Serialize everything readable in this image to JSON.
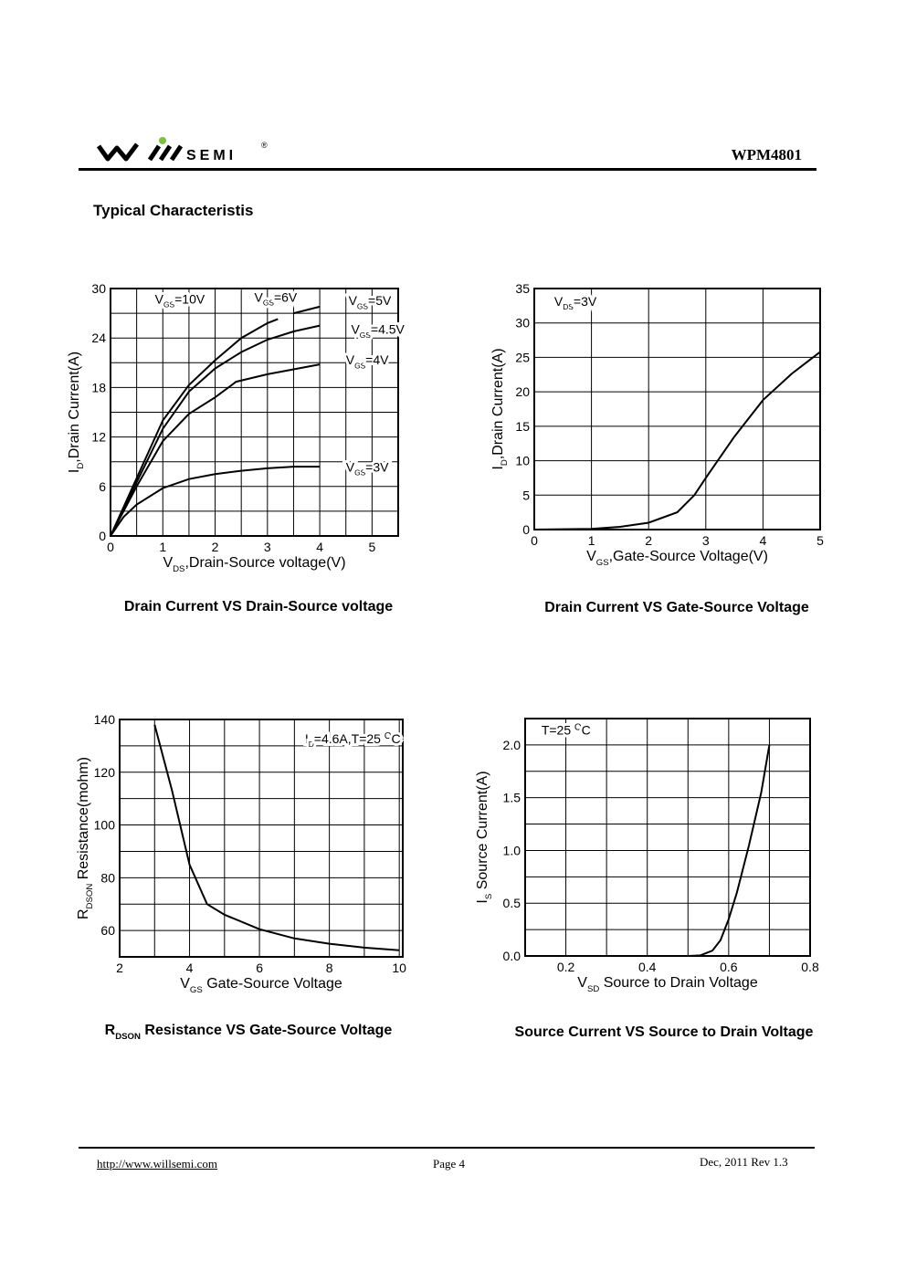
{
  "header": {
    "brand": "WILLSEMI",
    "brand_text": "SEMI",
    "registered": "®",
    "part_number": "WPM4801"
  },
  "section_title": "Typical Characteristis",
  "footer": {
    "url": "http://www.willsemi.com",
    "page": "Page 4",
    "revision": "Dec, 2011 Rev 1.3"
  },
  "chart_data": [
    {
      "type": "line",
      "title": "Drain Current VS Drain-Source voltage",
      "xlabel": {
        "main": "V",
        "sub": "DS",
        "rest": ",Drain-Source voltage(V)"
      },
      "ylabel": {
        "main": "I",
        "sub": "D",
        "rest": ",Drain Current(A)"
      },
      "xlim": [
        0,
        5.5
      ],
      "ylim": [
        0,
        30
      ],
      "xticks": [
        0,
        1,
        2,
        3,
        4,
        5
      ],
      "yticks": [
        0,
        6,
        12,
        18,
        24,
        30
      ],
      "xgrid_step": 0.5,
      "ygrid_step": 3,
      "grid": true,
      "series": [
        {
          "name": "VGS=5V",
          "x": [
            0,
            0.5,
            1,
            1.5,
            2,
            2.5,
            3,
            3.2
          ],
          "y": [
            0,
            7,
            14,
            18.3,
            21.3,
            24,
            25.8,
            26.3
          ]
        },
        {
          "name": "VGS=5V tail",
          "x": [
            3.5,
            4
          ],
          "y": [
            27,
            27.8
          ]
        },
        {
          "name": "VGS=4.5V",
          "x": [
            0,
            0.5,
            1,
            1.5,
            2,
            2.5,
            3,
            3.5,
            4
          ],
          "y": [
            0,
            6.5,
            13,
            17.5,
            20.3,
            22.3,
            23.8,
            24.8,
            25.5
          ]
        },
        {
          "name": "VGS=4V",
          "x": [
            0,
            0.5,
            1,
            1.5,
            2,
            2.4,
            3,
            3.5,
            4
          ],
          "y": [
            0,
            6,
            11.5,
            14.8,
            16.8,
            18.7,
            19.6,
            20.2,
            20.8
          ]
        },
        {
          "name": "VGS=3V",
          "x": [
            0,
            0.25,
            0.5,
            1,
            1.5,
            2,
            2.5,
            3,
            3.5,
            4
          ],
          "y": [
            0,
            2.3,
            3.8,
            5.8,
            6.9,
            7.5,
            7.9,
            8.2,
            8.4,
            8.4
          ]
        }
      ],
      "annotations": [
        {
          "main": "V",
          "sub": "GS",
          "rest": "=10V",
          "x": 0.85,
          "y": 28.2
        },
        {
          "main": "V",
          "sub": "GS",
          "rest": "=6V",
          "x": 2.75,
          "y": 28.4
        },
        {
          "main": "V",
          "sub": "GS",
          "rest": "=5V",
          "x": 4.55,
          "y": 28
        },
        {
          "main": "V",
          "sub": "GS",
          "rest": "=4.5V",
          "x": 4.6,
          "y": 24.5
        },
        {
          "main": "V",
          "sub": "GS",
          "rest": "=4V",
          "x": 4.5,
          "y": 20.8
        },
        {
          "main": "V",
          "sub": "GS",
          "rest": "=3V",
          "x": 4.5,
          "y": 7.8
        }
      ]
    },
    {
      "type": "line",
      "title": "Drain Current VS Gate-Source Voltage",
      "xlabel": {
        "main": "V",
        "sub": "GS",
        "rest": ",Gate-Source Voltage(V)"
      },
      "ylabel": {
        "main": "I",
        "sub": "D",
        "rest": ",Drain Current(A)"
      },
      "xlim": [
        0,
        5
      ],
      "ylim": [
        0,
        35
      ],
      "xticks": [
        0,
        1,
        2,
        3,
        4,
        5
      ],
      "yticks": [
        0,
        5,
        10,
        15,
        20,
        25,
        30,
        35
      ],
      "xgrid_step": 1,
      "ygrid_step": 5,
      "grid": true,
      "series": [
        {
          "name": "VDS=3V",
          "x": [
            0,
            1,
            1.5,
            2,
            2.5,
            2.8,
            3,
            3.5,
            4,
            4.5,
            5
          ],
          "y": [
            0,
            0.1,
            0.4,
            1,
            2.5,
            5,
            7.5,
            13.5,
            18.8,
            22.6,
            25.8
          ]
        }
      ],
      "annotations": [
        {
          "main": "V",
          "sub": "DS",
          "rest": "=3V",
          "x": 0.35,
          "y": 32.5
        }
      ]
    },
    {
      "type": "line",
      "title": {
        "main": "R",
        "sub": "DSON",
        "rest": " Resistance VS Gate-Source Voltage"
      },
      "xlabel": {
        "main": "V",
        "sub": "GS",
        "rest": " Gate-Source Voltage"
      },
      "ylabel": {
        "main": "R",
        "sub": "DSON",
        "rest": " Resistance(mohm)"
      },
      "xlim": [
        2,
        10.1
      ],
      "ylim": [
        50,
        140
      ],
      "xticks": [
        2,
        4,
        6,
        8,
        10
      ],
      "yticks": [
        60,
        80,
        100,
        120,
        140
      ],
      "xgrid_step": 1,
      "ygrid_step": 10,
      "grid": true,
      "series": [
        {
          "name": "ID=4.6A,T=25C",
          "x": [
            3,
            3.5,
            4,
            4.5,
            5,
            6,
            7,
            8,
            9,
            10
          ],
          "y": [
            138,
            113,
            85,
            70,
            66,
            60.5,
            57,
            55,
            53.5,
            52.5
          ]
        }
      ],
      "annotations": [
        {
          "main": "I",
          "sub": "D",
          "rest": "=4.6A,T=25 ",
          "sup": "O",
          "tail": "C",
          "x": 7.3,
          "y": 131
        }
      ]
    },
    {
      "type": "line",
      "title": "Source Current VS Source to Drain Voltage",
      "xlabel": {
        "main": "V",
        "sub": "SD",
        "rest": " Source to Drain Voltage"
      },
      "ylabel": {
        "main": "I",
        "sub": "S",
        "rest": " Source Current(A)"
      },
      "xlim": [
        0.1,
        0.8
      ],
      "ylim": [
        0,
        2.25
      ],
      "xticks": [
        0.2,
        0.4,
        0.6,
        0.8
      ],
      "yticks": [
        0.0,
        0.5,
        1.0,
        1.5,
        2.0
      ],
      "xgrid_step": 0.1,
      "ygrid_step": 0.25,
      "grid": true,
      "series": [
        {
          "name": "T=25C",
          "x": [
            0.5,
            0.53,
            0.56,
            0.58,
            0.6,
            0.62,
            0.65,
            0.68,
            0.7
          ],
          "y": [
            0,
            0.005,
            0.05,
            0.15,
            0.35,
            0.6,
            1.05,
            1.55,
            2.0
          ]
        }
      ],
      "annotations": [
        {
          "main": "T=25 ",
          "sup": "O",
          "tail": "C",
          "x": 0.14,
          "y": 2.1
        }
      ]
    }
  ]
}
